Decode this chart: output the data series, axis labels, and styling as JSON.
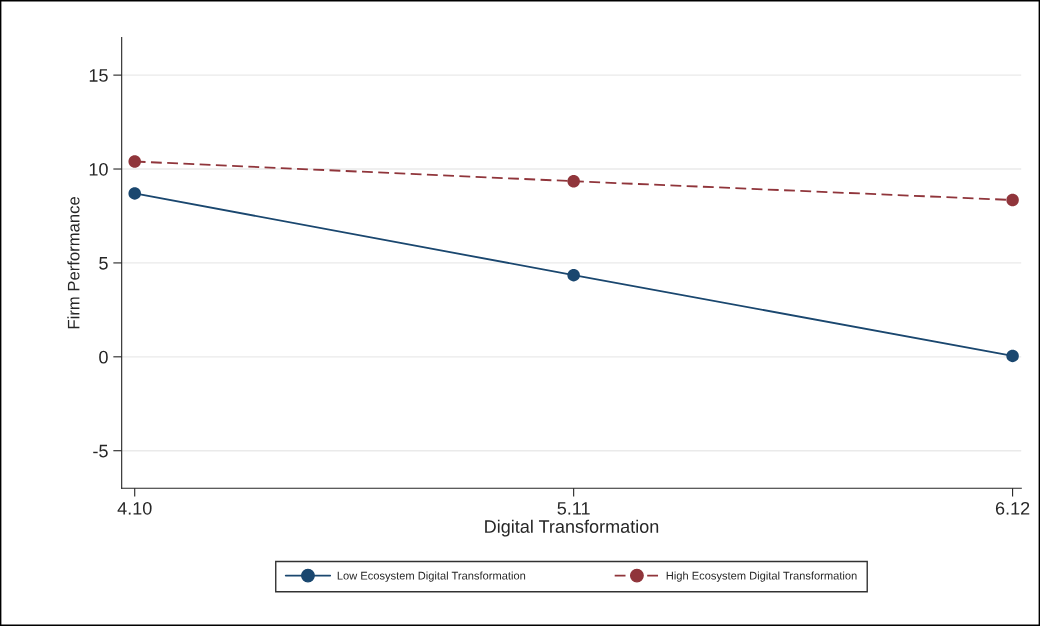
{
  "chart_data": {
    "type": "line",
    "xlabel": "Digital Transformation",
    "ylabel": "Firm Performance",
    "x": [
      4.1,
      5.11,
      6.12
    ],
    "series": [
      {
        "name": "Low Ecosystem Digital Transformation",
        "color": "#1a476f",
        "values": [
          8.7,
          4.35,
          0.05
        ],
        "line_style": "solid"
      },
      {
        "name": "High Ecosystem Digital Transformation",
        "color": "#90353b",
        "values": [
          10.4,
          9.35,
          8.35
        ],
        "line_style": "dashed"
      }
    ],
    "marker": "circle",
    "xlim": [
      4.07,
      6.14
    ],
    "xticks": [
      {
        "value": 4.1,
        "label": "4.10"
      },
      {
        "value": 5.11,
        "label": "5.11"
      },
      {
        "value": 6.12,
        "label": "6.12"
      }
    ],
    "ylim": [
      -7,
      17
    ],
    "yticks": [
      -5,
      0,
      5,
      10,
      15
    ],
    "grid": "y",
    "legend": "bottom"
  }
}
